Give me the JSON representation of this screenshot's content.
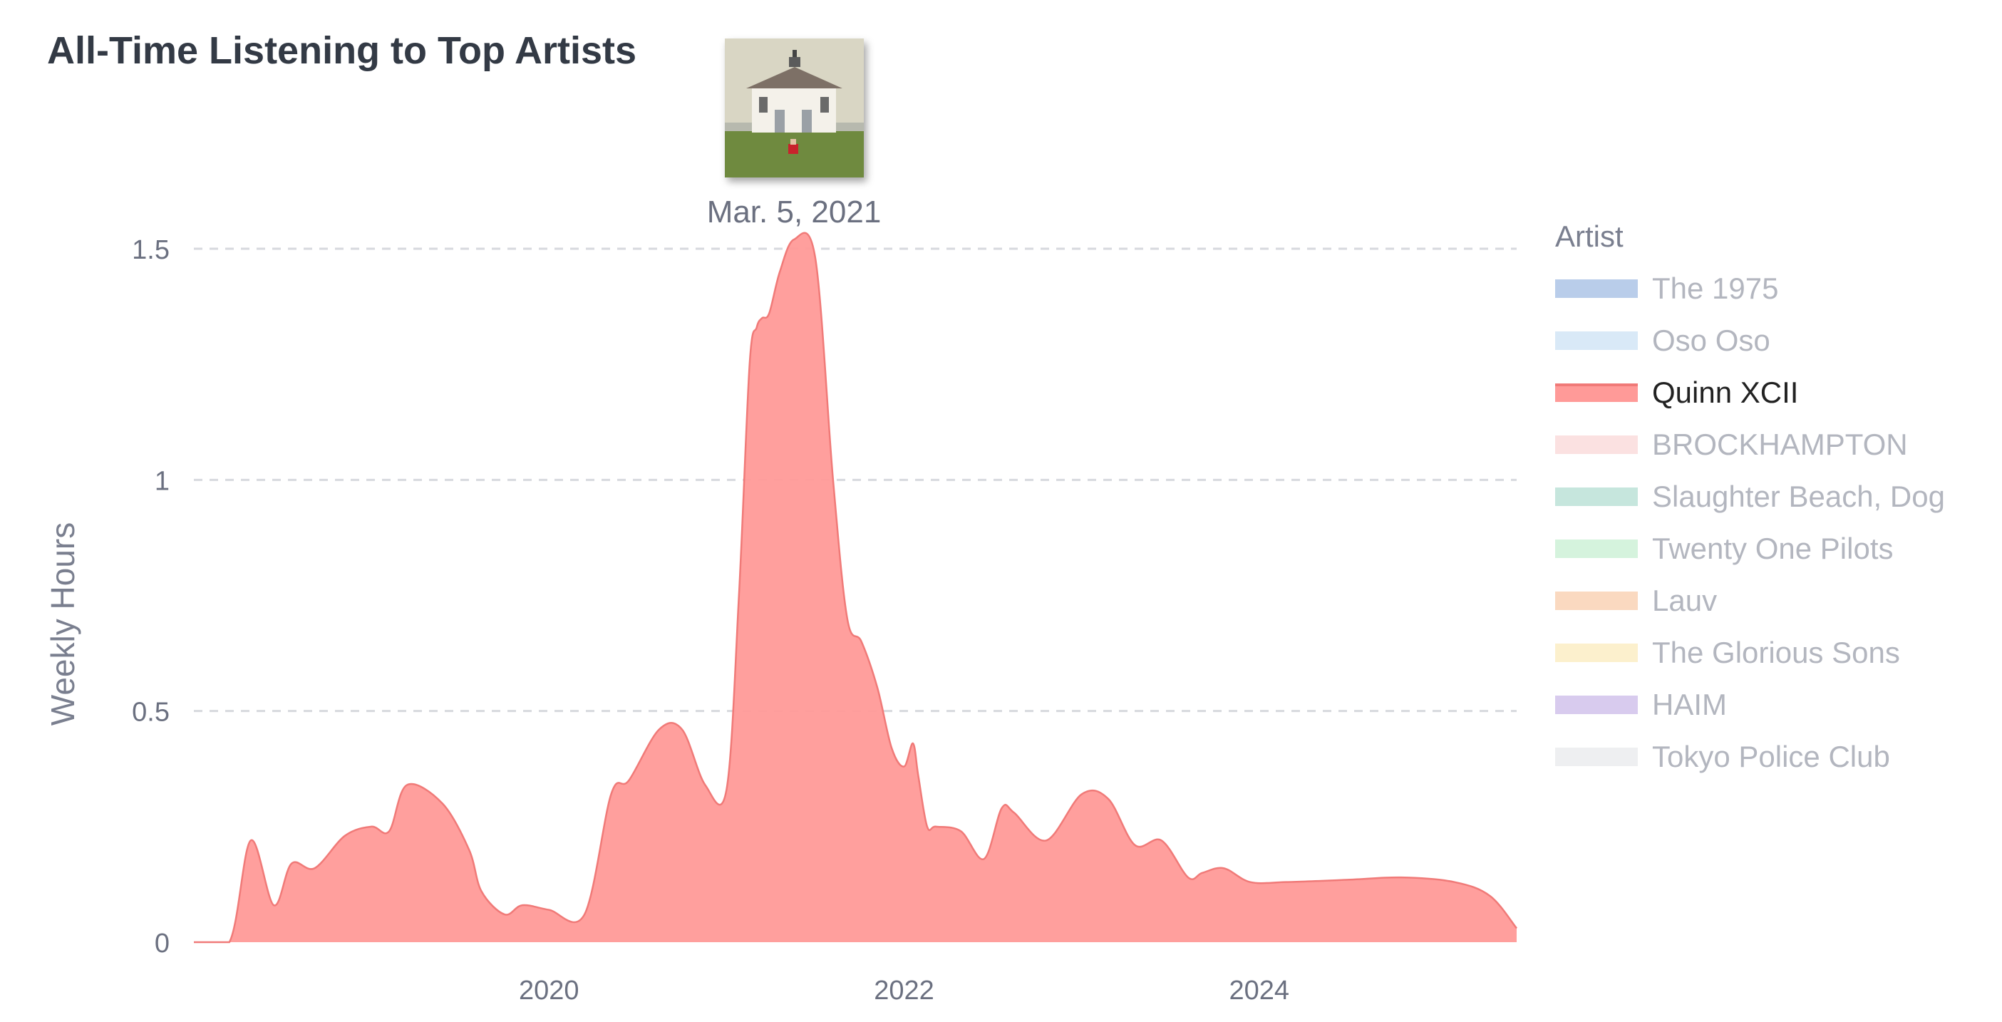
{
  "title": "All-Time Listening to Top Artists",
  "hover": {
    "label": "Mar. 5, 2021",
    "album_art_icon": "album-cover-house-icon"
  },
  "legend": {
    "title": "Artist",
    "items": [
      {
        "label": "The 1975",
        "color": "#b9cdea",
        "active": false
      },
      {
        "label": "Oso Oso",
        "color": "#d9e9f7",
        "active": false
      },
      {
        "label": "Quinn XCII",
        "color": "#ff9a98",
        "active": true
      },
      {
        "label": "BROCKHAMPTON",
        "color": "#fbe1e1",
        "active": false
      },
      {
        "label": "Slaughter Beach, Dog",
        "color": "#c6e6dd",
        "active": false
      },
      {
        "label": "Twenty One Pilots",
        "color": "#d5f3dd",
        "active": false
      },
      {
        "label": "Lauv",
        "color": "#fad9c0",
        "active": false
      },
      {
        "label": "The Glorious Sons",
        "color": "#fcf0cd",
        "active": false
      },
      {
        "label": "HAIM",
        "color": "#d8cbee",
        "active": false
      },
      {
        "label": "Tokyo Police Club",
        "color": "#eeeff1",
        "active": false
      }
    ]
  },
  "chart_data": {
    "type": "area",
    "title": "All-Time Listening to Top Artists",
    "xlabel": "",
    "ylabel": "Weekly Hours",
    "ylim": [
      0,
      1.5
    ],
    "yticks": [
      0,
      0.5,
      1,
      1.5
    ],
    "ytick_labels": [
      "0",
      "0.5",
      "1",
      "1.5"
    ],
    "xlim": [
      2018.0,
      2025.45
    ],
    "xticks": [
      2020,
      2022,
      2024
    ],
    "xtick_labels": [
      "2020",
      "2022",
      "2024"
    ],
    "grid": true,
    "legend_position": "right",
    "series": [
      {
        "name": "Quinn XCII",
        "color": "#ff9a98",
        "x": [
          2018.0,
          2018.2,
          2018.32,
          2018.45,
          2018.55,
          2018.68,
          2018.85,
          2019.0,
          2019.1,
          2019.2,
          2019.4,
          2019.55,
          2019.62,
          2019.75,
          2019.85,
          2020.0,
          2020.2,
          2020.35,
          2020.45,
          2020.62,
          2020.75,
          2020.88,
          2021.0,
          2021.07,
          2021.13,
          2021.17,
          2021.2,
          2021.24,
          2021.3,
          2021.38,
          2021.5,
          2021.6,
          2021.68,
          2021.76,
          2021.85,
          2021.93,
          2022.0,
          2022.05,
          2022.08,
          2022.13,
          2022.18,
          2022.32,
          2022.45,
          2022.55,
          2022.62,
          2022.8,
          2023.0,
          2023.15,
          2023.3,
          2023.45,
          2023.6,
          2023.68,
          2023.8,
          2023.95,
          2024.15,
          2024.5,
          2024.8,
          2025.1,
          2025.3,
          2025.45
        ],
        "values": [
          0.0,
          0.0,
          0.22,
          0.08,
          0.17,
          0.16,
          0.23,
          0.25,
          0.24,
          0.34,
          0.3,
          0.2,
          0.11,
          0.06,
          0.08,
          0.07,
          0.06,
          0.32,
          0.35,
          0.46,
          0.46,
          0.34,
          0.33,
          0.75,
          1.25,
          1.33,
          1.35,
          1.36,
          1.45,
          1.52,
          1.48,
          1.0,
          0.7,
          0.65,
          0.55,
          0.42,
          0.38,
          0.43,
          0.36,
          0.25,
          0.25,
          0.24,
          0.18,
          0.29,
          0.28,
          0.22,
          0.32,
          0.31,
          0.21,
          0.22,
          0.14,
          0.15,
          0.16,
          0.13,
          0.13,
          0.135,
          0.14,
          0.13,
          0.1,
          0.03
        ]
      }
    ]
  }
}
